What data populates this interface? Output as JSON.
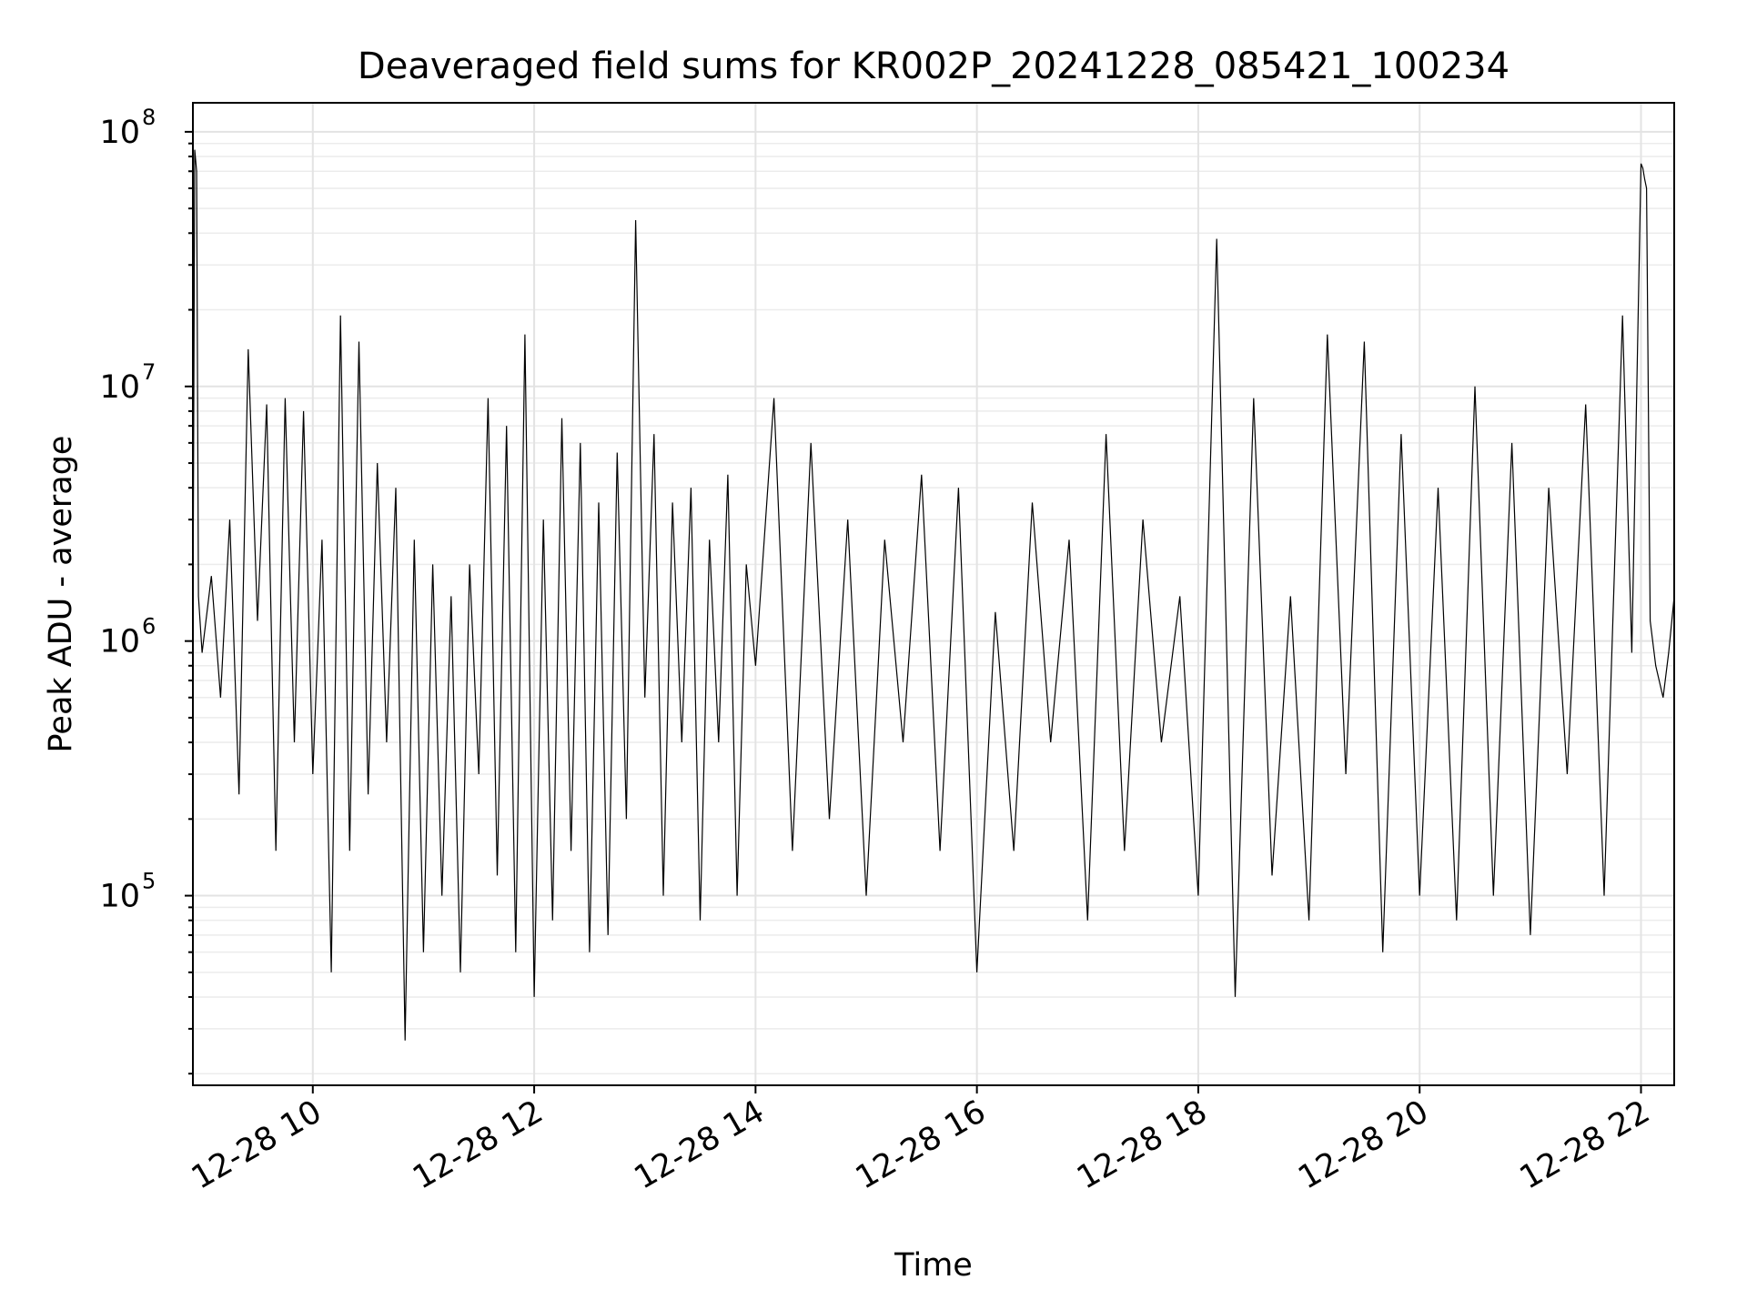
{
  "chart_data": {
    "type": "line",
    "title": "Deaveraged field sums for KR002P_20241228_085421_100234",
    "xlabel": "Time",
    "ylabel": "Peak ADU - average",
    "yscale": "log",
    "ylim": [
      18000,
      130000000
    ],
    "xlim": [
      "2024-12-28 08:55",
      "2024-12-28 22:18"
    ],
    "grid": true,
    "x_tick_labels": [
      "12-28 10",
      "12-28 12",
      "12-28 14",
      "12-28 16",
      "12-28 18",
      "12-28 20",
      "12-28 22"
    ],
    "x_tick_values": [
      "2024-12-28 10:00",
      "2024-12-28 12:00",
      "2024-12-28 14:00",
      "2024-12-28 16:00",
      "2024-12-28 18:00",
      "2024-12-28 20:00",
      "2024-12-28 22:00"
    ],
    "y_ticks": [
      {
        "base": "10",
        "exp": "5",
        "value": 100000
      },
      {
        "base": "10",
        "exp": "6",
        "value": 1000000
      },
      {
        "base": "10",
        "exp": "7",
        "value": 10000000
      },
      {
        "base": "10",
        "exp": "8",
        "value": 100000000
      }
    ],
    "series_color": "#000000",
    "series": [
      {
        "x": [
          "2024-12-28 08:55",
          "2024-12-28 08:56",
          "2024-12-28 08:57",
          "2024-12-28 08:58",
          "2024-12-28 09:00",
          "2024-12-28 09:05",
          "2024-12-28 09:10",
          "2024-12-28 09:15",
          "2024-12-28 09:20",
          "2024-12-28 09:25",
          "2024-12-28 09:30",
          "2024-12-28 09:35",
          "2024-12-28 09:40",
          "2024-12-28 09:45",
          "2024-12-28 09:50",
          "2024-12-28 09:55",
          "2024-12-28 10:00",
          "2024-12-28 10:05",
          "2024-12-28 10:10",
          "2024-12-28 10:15",
          "2024-12-28 10:20",
          "2024-12-28 10:25",
          "2024-12-28 10:30",
          "2024-12-28 10:35",
          "2024-12-28 10:40",
          "2024-12-28 10:45",
          "2024-12-28 10:50",
          "2024-12-28 10:55",
          "2024-12-28 11:00",
          "2024-12-28 11:05",
          "2024-12-28 11:10",
          "2024-12-28 11:15",
          "2024-12-28 11:20",
          "2024-12-28 11:25",
          "2024-12-28 11:30",
          "2024-12-28 11:35",
          "2024-12-28 11:40",
          "2024-12-28 11:45",
          "2024-12-28 11:50",
          "2024-12-28 11:55",
          "2024-12-28 12:00",
          "2024-12-28 12:05",
          "2024-12-28 12:10",
          "2024-12-28 12:15",
          "2024-12-28 12:20",
          "2024-12-28 12:25",
          "2024-12-28 12:30",
          "2024-12-28 12:35",
          "2024-12-28 12:40",
          "2024-12-28 12:45",
          "2024-12-28 12:50",
          "2024-12-28 12:55",
          "2024-12-28 13:00",
          "2024-12-28 13:05",
          "2024-12-28 13:10",
          "2024-12-28 13:15",
          "2024-12-28 13:20",
          "2024-12-28 13:25",
          "2024-12-28 13:30",
          "2024-12-28 13:35",
          "2024-12-28 13:40",
          "2024-12-28 13:45",
          "2024-12-28 13:50",
          "2024-12-28 13:55",
          "2024-12-28 14:00",
          "2024-12-28 14:10",
          "2024-12-28 14:20",
          "2024-12-28 14:30",
          "2024-12-28 14:40",
          "2024-12-28 14:50",
          "2024-12-28 15:00",
          "2024-12-28 15:10",
          "2024-12-28 15:20",
          "2024-12-28 15:30",
          "2024-12-28 15:40",
          "2024-12-28 15:50",
          "2024-12-28 16:00",
          "2024-12-28 16:10",
          "2024-12-28 16:20",
          "2024-12-28 16:30",
          "2024-12-28 16:40",
          "2024-12-28 16:50",
          "2024-12-28 17:00",
          "2024-12-28 17:10",
          "2024-12-28 17:20",
          "2024-12-28 17:30",
          "2024-12-28 17:40",
          "2024-12-28 17:50",
          "2024-12-28 18:00",
          "2024-12-28 18:10",
          "2024-12-28 18:20",
          "2024-12-28 18:30",
          "2024-12-28 18:40",
          "2024-12-28 18:50",
          "2024-12-28 19:00",
          "2024-12-28 19:10",
          "2024-12-28 19:20",
          "2024-12-28 19:30",
          "2024-12-28 19:40",
          "2024-12-28 19:50",
          "2024-12-28 20:00",
          "2024-12-28 20:10",
          "2024-12-28 20:20",
          "2024-12-28 20:30",
          "2024-12-28 20:40",
          "2024-12-28 20:50",
          "2024-12-28 21:00",
          "2024-12-28 21:10",
          "2024-12-28 21:20",
          "2024-12-28 21:30",
          "2024-12-28 21:40",
          "2024-12-28 21:50",
          "2024-12-28 21:55",
          "2024-12-28 22:00",
          "2024-12-28 22:01",
          "2024-12-28 22:02",
          "2024-12-28 22:03",
          "2024-12-28 22:05",
          "2024-12-28 22:08",
          "2024-12-28 22:12",
          "2024-12-28 22:15",
          "2024-12-28 22:18"
        ],
        "values": [
          1000000,
          85000000,
          70000000,
          1500000,
          900000,
          1800000,
          600000,
          3000000,
          250000,
          14000000,
          1200000,
          8500000,
          150000,
          9000000,
          400000,
          8000000,
          300000,
          2500000,
          50000,
          19000000,
          150000,
          15000000,
          250000,
          5000000,
          400000,
          4000000,
          27000,
          2500000,
          60000,
          2000000,
          100000,
          1500000,
          50000,
          2000000,
          300000,
          9000000,
          120000,
          7000000,
          60000,
          16000000,
          40000,
          3000000,
          80000,
          7500000,
          150000,
          6000000,
          60000,
          3500000,
          70000,
          5500000,
          200000,
          45000000,
          600000,
          6500000,
          100000,
          3500000,
          400000,
          4000000,
          80000,
          2500000,
          400000,
          4500000,
          100000,
          2000000,
          800000,
          9000000,
          150000,
          6000000,
          200000,
          3000000,
          100000,
          2500000,
          400000,
          4500000,
          150000,
          4000000,
          50000,
          1300000,
          150000,
          3500000,
          400000,
          2500000,
          80000,
          6500000,
          150000,
          3000000,
          400000,
          1500000,
          100000,
          38000000,
          40000,
          9000000,
          120000,
          1500000,
          80000,
          16000000,
          300000,
          15000000,
          60000,
          6500000,
          100000,
          4000000,
          80000,
          10000000,
          100000,
          6000000,
          70000,
          4000000,
          300000,
          8500000,
          100000,
          19000000,
          900000,
          75000000,
          72000000,
          65000000,
          60000000,
          1200000,
          800000,
          600000,
          900000,
          1500000
        ]
      }
    ]
  }
}
